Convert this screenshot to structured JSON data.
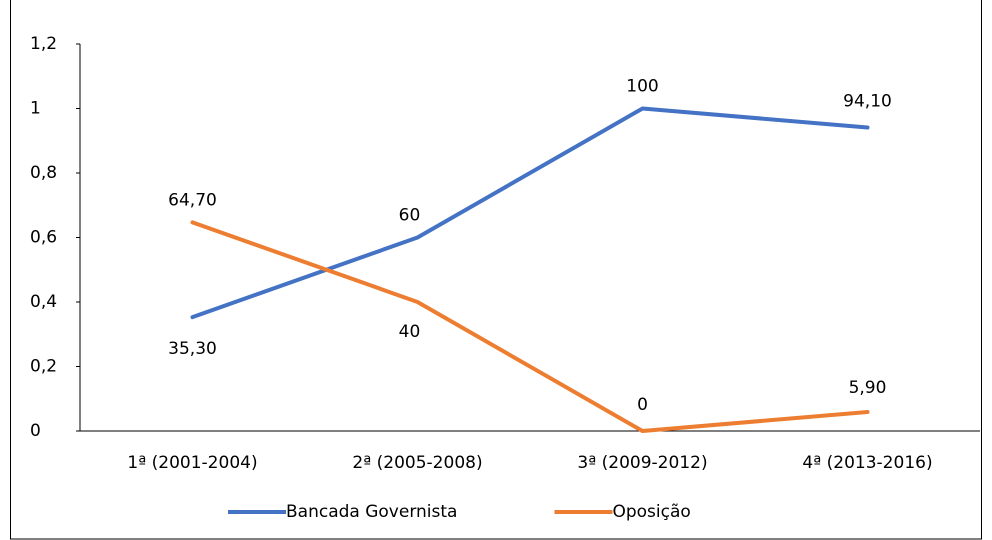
{
  "chart_data": {
    "type": "line",
    "categories": [
      "1ª (2001-2004)",
      "2ª (2005-2008)",
      "3ª (2009-2012)",
      "4ª (2013-2016)"
    ],
    "series": [
      {
        "name": "Bancada Governista",
        "color": "#4472c4",
        "values": [
          0.353,
          0.6,
          1,
          0.941
        ],
        "value_labels": [
          "35,30",
          "60",
          "100",
          "94,10"
        ]
      },
      {
        "name": "Oposição",
        "color": "#ed7d31",
        "values": [
          0.647,
          0.4,
          0,
          0.059
        ],
        "value_labels": [
          "64,70",
          "40",
          "0",
          "5,90"
        ]
      }
    ],
    "ylim": [
      0,
      1.2
    ],
    "yticks": [
      0,
      {
        "value": 0.2,
        "label": "0,2"
      },
      {
        "value": 0.4,
        "label": "0,4"
      },
      {
        "value": 0.6,
        "label": "0,6"
      },
      {
        "value": 0.8,
        "label": "0,8"
      },
      1,
      {
        "value": 1.2,
        "label": "1,2"
      }
    ],
    "grid": false
  }
}
